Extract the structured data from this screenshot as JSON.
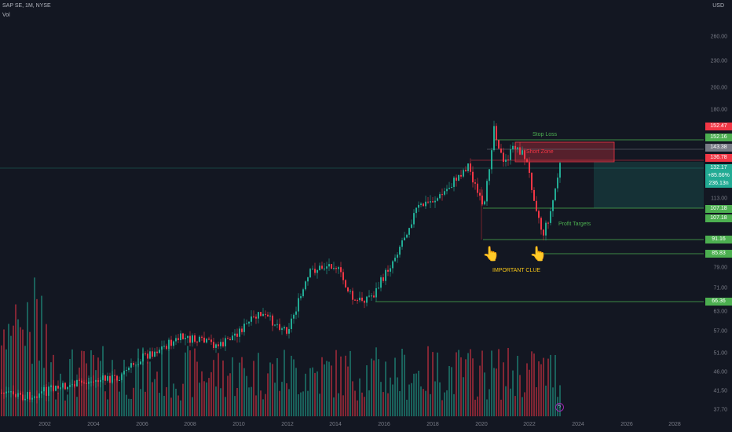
{
  "header": {
    "symbol": "SAP SE, 1M, NYSE",
    "indicator": "Vol"
  },
  "currency": "USD",
  "price_axis": {
    "ticks": [
      "260.00",
      "230.00",
      "200.00",
      "180.00",
      "113.00",
      "79.00",
      "71.00",
      "63.00",
      "57.00",
      "51.00",
      "46.00",
      "41.50",
      "37.70"
    ]
  },
  "time_axis": {
    "ticks": [
      "2002",
      "2004",
      "2006",
      "2008",
      "2010",
      "2012",
      "2014",
      "2016",
      "2018",
      "2020",
      "2022",
      "2024",
      "2026",
      "2028"
    ]
  },
  "badges": [
    {
      "text": "152.47",
      "color": "#f23645"
    },
    {
      "text": "152.16",
      "color": "#4caf50"
    },
    {
      "text": "143.38",
      "color": "#787b86"
    },
    {
      "text": "136.78",
      "color": "#f23645"
    },
    {
      "text": "132.17",
      "color": "#22ab94"
    },
    {
      "text": "+85.66%",
      "color": "#22ab94"
    },
    {
      "text": "236.13n",
      "color": "#22ab94"
    },
    {
      "text": "107.18",
      "color": "#4caf50"
    },
    {
      "text": "107.18",
      "color": "#4caf50"
    },
    {
      "text": "91.16",
      "color": "#4caf50"
    },
    {
      "text": "85.83",
      "color": "#4caf50"
    },
    {
      "text": "66.36",
      "color": "#4caf50"
    }
  ],
  "annotations": {
    "stop_loss": "Stop Loss",
    "short_zone": "Short Zone",
    "profit_targets": "Profit Targets",
    "important_clue": "IMPORTANT CLUE"
  },
  "icons": {
    "pointer": "hand-pointing-icon",
    "lightning": "lightning-icon"
  },
  "colors": {
    "up": "#22ab94",
    "down": "#f23645",
    "target": "#4caf50",
    "clue": "#f5c518"
  },
  "chart_data": {
    "type": "candlestick",
    "symbol": "SAP SE",
    "interval": "1M",
    "exchange": "NYSE",
    "currency": "USD",
    "price_ticks": [
      260,
      230,
      200,
      180,
      113,
      79,
      71,
      63,
      57,
      51,
      46,
      41.5,
      37.7
    ],
    "year_ticks": [
      2002,
      2004,
      2006,
      2008,
      2010,
      2012,
      2014,
      2016,
      2018,
      2020,
      2022,
      2024,
      2026,
      2028
    ],
    "levels": {
      "stop_loss": 152.16,
      "short_zone": [
        136.78,
        152.47
      ],
      "last_price": 132.17,
      "profit_targets": [
        107.18,
        91.16,
        85.83,
        66.36
      ]
    },
    "last_change": "+85.66%",
    "indicators": [
      "Vol"
    ]
  }
}
